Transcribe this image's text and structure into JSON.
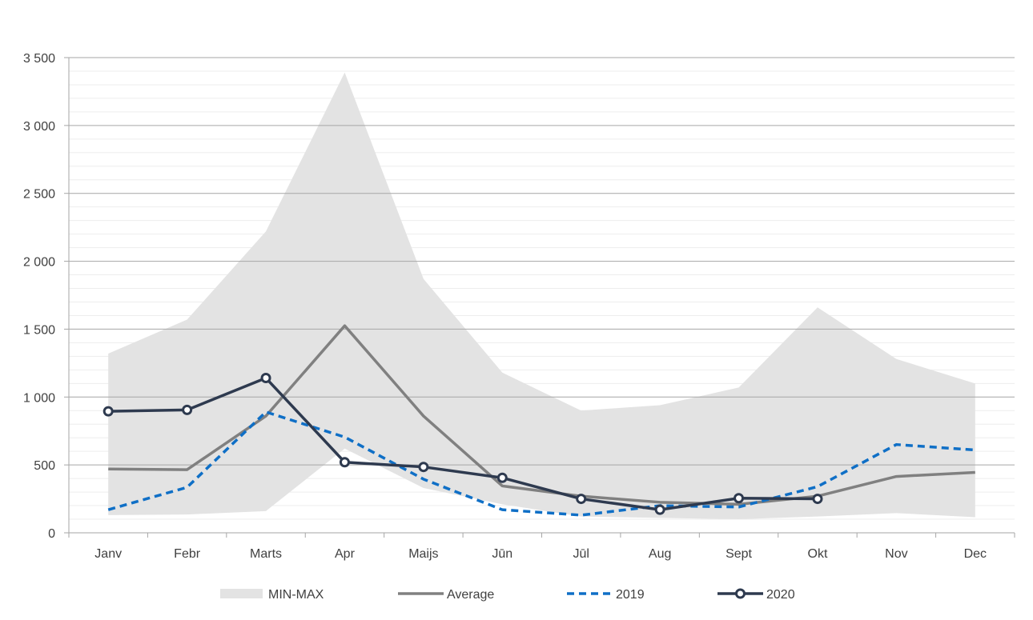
{
  "chart_data": {
    "type": "line",
    "title": "",
    "xlabel": "",
    "ylabel": "",
    "categories": [
      "Janv",
      "Febr",
      "Marts",
      "Apr",
      "Maijs",
      "Jūn",
      "Jūl",
      "Aug",
      "Sept",
      "Okt",
      "Nov",
      "Dec"
    ],
    "ylim": [
      0,
      3500
    ],
    "yticks": [
      0,
      500,
      1000,
      1500,
      2000,
      2500,
      3000,
      3500
    ],
    "ytick_labels": [
      "0",
      "500",
      "1 000",
      "1 500",
      "2 000",
      "2 500",
      "3 000",
      "3 500"
    ],
    "grid": true,
    "legend_position": "bottom",
    "band": {
      "name": "MIN-MAX",
      "color": "#e3e3e3",
      "min": [
        130,
        135,
        160,
        620,
        330,
        210,
        120,
        110,
        100,
        120,
        145,
        115
      ],
      "max": [
        1320,
        1570,
        2220,
        3390,
        1870,
        1180,
        900,
        940,
        1070,
        1660,
        1280,
        1100
      ]
    },
    "series": [
      {
        "name": "Average",
        "color": "#808080",
        "style": "solid",
        "markers": false,
        "values": [
          470,
          465,
          860,
          1525,
          860,
          345,
          270,
          225,
          210,
          270,
          415,
          445
        ]
      },
      {
        "name": "2019",
        "color": "#0f6fc6",
        "style": "dashed",
        "markers": false,
        "values": [
          170,
          335,
          890,
          705,
          395,
          170,
          130,
          200,
          190,
          340,
          650,
          610
        ]
      },
      {
        "name": "2020",
        "color": "#2e3a4f",
        "style": "solid",
        "markers": true,
        "values": [
          895,
          905,
          1140,
          520,
          485,
          405,
          250,
          170,
          255,
          250,
          null,
          null
        ]
      }
    ]
  }
}
